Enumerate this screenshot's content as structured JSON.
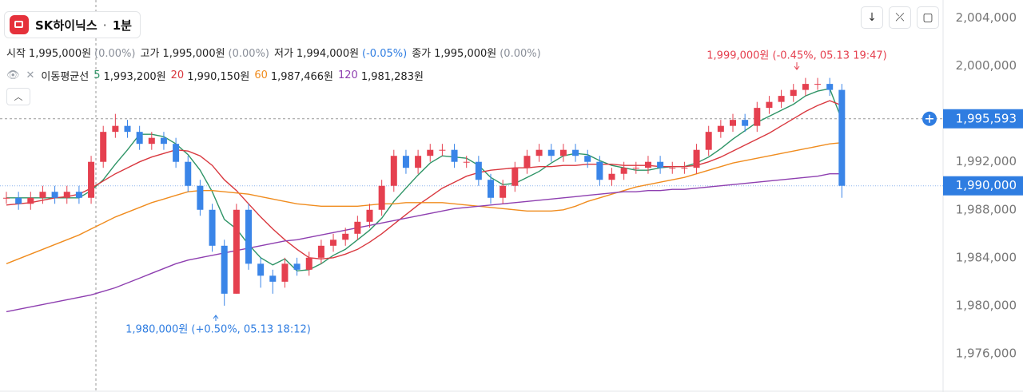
{
  "chart_data": {
    "type": "candlestick",
    "title": "SK하이닉스",
    "interval": "1분",
    "ohlc_summary": [
      {
        "label": "시작",
        "value": "1,995,000원",
        "change": "(0.00%)",
        "change_color": "#8a8f99"
      },
      {
        "label": "고가",
        "value": "1,995,000원",
        "change": "(0.00%)",
        "change_color": "#8a8f99"
      },
      {
        "label": "저가",
        "value": "1,994,000원",
        "change": "(-0.05%)",
        "change_color": "#2f7de1"
      },
      {
        "label": "종가",
        "value": "1,995,000원",
        "change": "(0.00%)",
        "change_color": "#8a8f99"
      }
    ],
    "ma_title": "이동평균선",
    "up_color": "#e5404f",
    "down_color": "#3a85e8",
    "ylim": [
      1972800,
      2005500
    ],
    "yticks": [
      {
        "value": 1976000,
        "label": "1,976,000"
      },
      {
        "value": 1980000,
        "label": "1,980,000"
      },
      {
        "value": 1984000,
        "label": "1,984,000"
      },
      {
        "value": 1988000,
        "label": "1,988,000"
      },
      {
        "value": 1992000,
        "label": "1,992,000"
      },
      {
        "value": 2000000,
        "label": "2,000,000"
      },
      {
        "value": 2004000,
        "label": "2,004,000"
      }
    ],
    "grid": false,
    "open": [
      1989000,
      1989000,
      1988500,
      1989000,
      1989500,
      1989000,
      1989500,
      1989000,
      1992000,
      1994500,
      1995000,
      1994500,
      1993500,
      1994000,
      1993500,
      1992000,
      1990000,
      1988000,
      1985000,
      1981000,
      1988000,
      1983500,
      1982500,
      1982000,
      1983500,
      1983000,
      1984000,
      1985000,
      1985500,
      1986000,
      1987000,
      1988000,
      1990000,
      1992500,
      1991500,
      1992500,
      1993000,
      1993000,
      1992000,
      1992000,
      1990500,
      1989000,
      1990000,
      1991500,
      1992500,
      1993000,
      1992500,
      1993000,
      1992500,
      1992000,
      1990500,
      1991000,
      1991500,
      1991500,
      1992000,
      1991500,
      1991500,
      1991500,
      1993000,
      1994500,
      1995000,
      1995500,
      1995000,
      1996500,
      1997000,
      1997500,
      1998000,
      1998500,
      1998500,
      1998000
    ],
    "high": [
      1989500,
      1989500,
      1989500,
      1990000,
      1990000,
      1990000,
      1990000,
      1992500,
      1995000,
      1996000,
      1995500,
      1995000,
      1994500,
      1994500,
      1994000,
      1992500,
      1990500,
      1988500,
      1985500,
      1988500,
      1988500,
      1984000,
      1983000,
      1984000,
      1984000,
      1984500,
      1985500,
      1986000,
      1986500,
      1987500,
      1988500,
      1990500,
      1993000,
      1993000,
      1993000,
      1993500,
      1993500,
      1993500,
      1992500,
      1992500,
      1991000,
      1990500,
      1992000,
      1993000,
      1993500,
      1993500,
      1993500,
      1993500,
      1993000,
      1992500,
      1991500,
      1992000,
      1992000,
      1992500,
      1992500,
      1992000,
      1992000,
      1993500,
      1995000,
      1995500,
      1996000,
      1996000,
      1997000,
      1997500,
      1998000,
      1998500,
      1999000,
      1999000,
      1999000,
      1998500
    ],
    "low": [
      1988500,
      1988000,
      1988000,
      1988500,
      1988500,
      1988500,
      1988500,
      1988500,
      1991500,
      1994000,
      1994000,
      1993000,
      1993000,
      1993000,
      1991500,
      1989500,
      1987500,
      1984500,
      1980000,
      1981000,
      1983000,
      1981500,
      1981000,
      1981500,
      1982500,
      1982500,
      1983500,
      1984500,
      1985000,
      1985500,
      1986500,
      1987500,
      1989500,
      1991000,
      1991000,
      1992000,
      1992500,
      1991500,
      1991500,
      1990000,
      1988500,
      1988500,
      1989500,
      1991000,
      1992000,
      1992000,
      1992000,
      1992000,
      1991500,
      1990000,
      1990000,
      1990500,
      1991000,
      1991000,
      1991000,
      1991000,
      1991000,
      1991000,
      1992500,
      1994000,
      1994500,
      1994500,
      1994500,
      1996000,
      1996500,
      1997000,
      1997500,
      1998000,
      1997500,
      1989000
    ],
    "close": [
      1989000,
      1988500,
      1989000,
      1989500,
      1989000,
      1989500,
      1989000,
      1992000,
      1994500,
      1995000,
      1994500,
      1993500,
      1994000,
      1993500,
      1992000,
      1990000,
      1988000,
      1985000,
      1981000,
      1988000,
      1983500,
      1982500,
      1982000,
      1983500,
      1983000,
      1984000,
      1985000,
      1985500,
      1986000,
      1987000,
      1988000,
      1990000,
      1992500,
      1991500,
      1992500,
      1993000,
      1993000,
      1992000,
      1992000,
      1990500,
      1989000,
      1990000,
      1991500,
      1992500,
      1993000,
      1992500,
      1993000,
      1992500,
      1992000,
      1990500,
      1991000,
      1991500,
      1991500,
      1992000,
      1991500,
      1991500,
      1991500,
      1993000,
      1994500,
      1995000,
      1995500,
      1995000,
      1996500,
      1997000,
      1997500,
      1998000,
      1998500,
      1998500,
      1998000,
      1990000
    ],
    "moving_averages": [
      {
        "name": 5,
        "label": "1,993,200원",
        "color": "#2e9466",
        "values": [
          1989000,
          1989000,
          1989000,
          1989000,
          1989000,
          1989000,
          1989000,
          1989600,
          1990500,
          1991800,
          1993000,
          1994300,
          1994300,
          1994100,
          1993500,
          1992600,
          1991300,
          1989500,
          1987200,
          1986400,
          1985100,
          1984000,
          1983400,
          1983900,
          1982900,
          1983000,
          1983500,
          1984200,
          1984700,
          1985500,
          1986300,
          1987300,
          1988700,
          1989800,
          1990900,
          1991900,
          1992500,
          1992400,
          1992300,
          1991700,
          1990700,
          1990100,
          1990200,
          1990700,
          1991200,
          1991900,
          1992500,
          1992700,
          1992600,
          1992100,
          1991700,
          1991500,
          1991300,
          1991300,
          1991500,
          1991600,
          1991600,
          1991900,
          1992400,
          1993100,
          1993900,
          1994600,
          1995300,
          1995800,
          1996300,
          1996800,
          1997500,
          1997900,
          1998100,
          1995500
        ]
      },
      {
        "name": 20,
        "label": "1,990,150원",
        "color": "#d9383f",
        "values": [
          1988400,
          1988500,
          1988600,
          1988800,
          1989000,
          1989100,
          1989300,
          1989800,
          1990400,
          1991000,
          1991500,
          1992000,
          1992400,
          1992700,
          1993000,
          1992900,
          1992500,
          1991700,
          1990500,
          1989600,
          1988500,
          1987400,
          1986400,
          1985500,
          1984700,
          1984000,
          1983900,
          1984000,
          1984300,
          1984700,
          1985300,
          1986000,
          1986800,
          1987600,
          1988400,
          1989100,
          1989800,
          1990300,
          1990800,
          1991100,
          1991300,
          1991400,
          1991500,
          1991500,
          1991600,
          1991600,
          1991700,
          1991700,
          1991800,
          1991800,
          1991800,
          1991700,
          1991700,
          1991700,
          1991600,
          1991600,
          1991600,
          1991700,
          1992000,
          1992400,
          1992900,
          1993400,
          1993900,
          1994400,
          1995000,
          1995600,
          1996200,
          1996700,
          1997100,
          1996700
        ]
      },
      {
        "name": 60,
        "label": "1,987,466원",
        "color": "#f08c1e",
        "values": [
          1983500,
          1983900,
          1984300,
          1984700,
          1985100,
          1985500,
          1985900,
          1986400,
          1986900,
          1987400,
          1987800,
          1988200,
          1988600,
          1988900,
          1989200,
          1989500,
          1989600,
          1989600,
          1989500,
          1989400,
          1989300,
          1989100,
          1988900,
          1988700,
          1988500,
          1988400,
          1988300,
          1988300,
          1988300,
          1988300,
          1988400,
          1988500,
          1988500,
          1988600,
          1988600,
          1988600,
          1988600,
          1988500,
          1988400,
          1988300,
          1988200,
          1988100,
          1988000,
          1987900,
          1987900,
          1987900,
          1988000,
          1988300,
          1988700,
          1989000,
          1989300,
          1989600,
          1989900,
          1990100,
          1990300,
          1990500,
          1990700,
          1991000,
          1991300,
          1991600,
          1991900,
          1992100,
          1992300,
          1992500,
          1992700,
          1992900,
          1993100,
          1993300,
          1993500,
          1993600
        ]
      },
      {
        "name": 120,
        "label": "1,981,283원",
        "color": "#8e3fb0",
        "values": [
          1979500,
          1979700,
          1979900,
          1980100,
          1980300,
          1980500,
          1980700,
          1980900,
          1981200,
          1981500,
          1981900,
          1982300,
          1982700,
          1983100,
          1983500,
          1983800,
          1984000,
          1984200,
          1984400,
          1984600,
          1984800,
          1985000,
          1985200,
          1985400,
          1985500,
          1985700,
          1985900,
          1986100,
          1986300,
          1986500,
          1986700,
          1986900,
          1987100,
          1987300,
          1987500,
          1987700,
          1987900,
          1988100,
          1988200,
          1988300,
          1988400,
          1988500,
          1988600,
          1988700,
          1988800,
          1988900,
          1989000,
          1989100,
          1989200,
          1989300,
          1989400,
          1989500,
          1989500,
          1989600,
          1989600,
          1989700,
          1989700,
          1989800,
          1989900,
          1990000,
          1990100,
          1990200,
          1990300,
          1990400,
          1990500,
          1990600,
          1990700,
          1990800,
          1991000,
          1991000
        ]
      }
    ],
    "crosshair_price": {
      "value": 1995593,
      "label": "1,995,593"
    },
    "last_price": {
      "value": 1990000,
      "label": "1,990,000"
    },
    "annotations": {
      "high": "1,999,000원 (-0.45%, 05.13 19:47)",
      "low": "1,980,000원 (+0.50%, 05.13 18:12)"
    }
  }
}
